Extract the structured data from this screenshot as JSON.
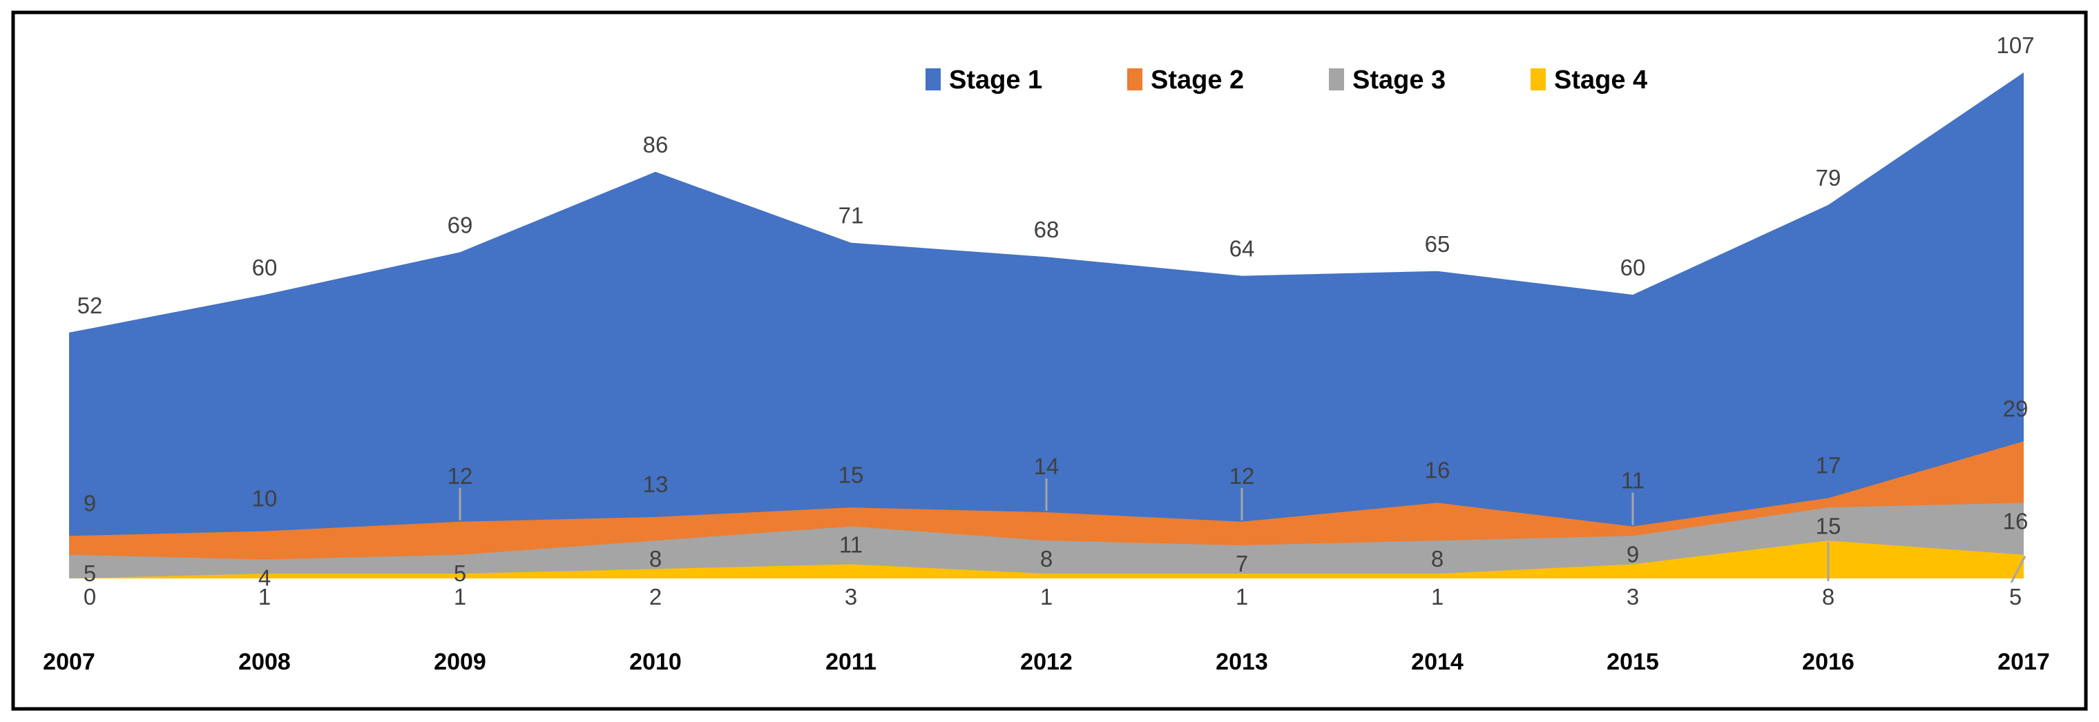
{
  "chart_data": {
    "type": "area",
    "variant": "overlapping-areas-from-baseline",
    "title": "",
    "xlabel": "",
    "ylabel": "",
    "y_axis_visible": false,
    "gridlines": false,
    "background_color": "#ffffff",
    "border_color": "#000000",
    "categories": [
      "2007",
      "2008",
      "2009",
      "2010",
      "2011",
      "2012",
      "2013",
      "2014",
      "2015",
      "2016",
      "2017"
    ],
    "series": [
      {
        "name": "Stage 1",
        "color": "#4472C4",
        "values": [
          52,
          60,
          69,
          86,
          71,
          68,
          64,
          65,
          60,
          79,
          107
        ]
      },
      {
        "name": "Stage 2",
        "color": "#ED7D31",
        "values": [
          9,
          10,
          12,
          13,
          15,
          14,
          12,
          16,
          11,
          17,
          29
        ]
      },
      {
        "name": "Stage 3",
        "color": "#A5A5A5",
        "values": [
          5,
          4,
          5,
          8,
          11,
          8,
          7,
          8,
          9,
          15,
          16
        ]
      },
      {
        "name": "Stage 4",
        "color": "#FFC000",
        "values": [
          0,
          1,
          1,
          2,
          3,
          1,
          1,
          1,
          3,
          8,
          5
        ]
      }
    ],
    "legend": {
      "position": "top",
      "entries": [
        "Stage 1",
        "Stage 2",
        "Stage 3",
        "Stage 4"
      ],
      "text_color": "#000000"
    },
    "data_labels_shown": true,
    "data_label_color": "#404040",
    "x_axis_label_color": "#000000",
    "leader_line_color": "#A6A6A6",
    "labels_with_leader_lines": [
      {
        "series": 1,
        "index": 2,
        "diagonal": false
      },
      {
        "series": 1,
        "index": 5,
        "diagonal": false
      },
      {
        "series": 1,
        "index": 6,
        "diagonal": false
      },
      {
        "series": 1,
        "index": 8,
        "diagonal": false
      },
      {
        "series": 3,
        "index": 9,
        "diagonal": false
      },
      {
        "series": 3,
        "index": 10,
        "diagonal": true
      }
    ],
    "ylim": [
      0,
      110
    ]
  }
}
